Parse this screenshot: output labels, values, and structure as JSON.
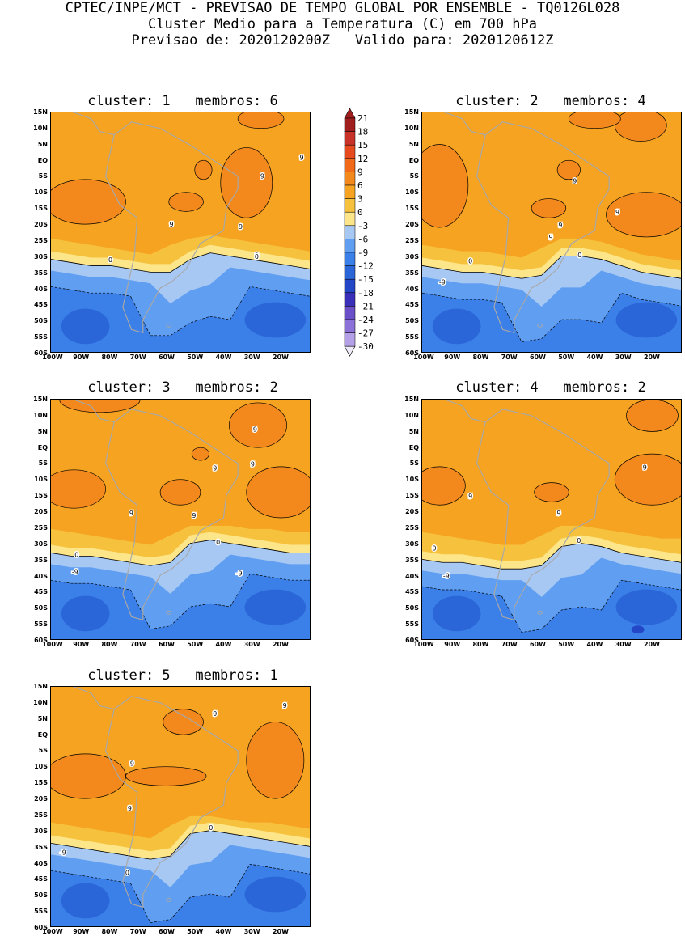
{
  "header": {
    "line1": "CPTEC/INPE/MCT - PREVISAO DE TEMPO GLOBAL POR ENSEMBLE - TQ0126L028",
    "line2": "Cluster Medio para a Temperatura (C) em 700 hPa",
    "line3": "Previsao de: 2020120200Z   Valido para: 2020120612Z"
  },
  "lat_labels": [
    "15N",
    "10N",
    "5N",
    "EQ",
    "5S",
    "10S",
    "15S",
    "20S",
    "25S",
    "30S",
    "35S",
    "40S",
    "45S",
    "50S",
    "55S",
    "60S"
  ],
  "lon_labels": [
    "100W",
    "90W",
    "80W",
    "70W",
    "60W",
    "50W",
    "40W",
    "30W",
    "20W"
  ],
  "colorbar": {
    "levels": [
      "21",
      "18",
      "15",
      "12",
      "9",
      "6",
      "3",
      "0",
      "-3",
      "-6",
      "-9",
      "-12",
      "-15",
      "-18",
      "-21",
      "-24",
      "-27",
      "-30"
    ],
    "colors": [
      "#a01e1e",
      "#c83228",
      "#e64a1e",
      "#f06a1a",
      "#f3891c",
      "#f5a321",
      "#f6c23e",
      "#fde68a",
      "#a8c8f4",
      "#5f9ef0",
      "#3b7fe8",
      "#2a66d8",
      "#2447c8",
      "#3a2fb8",
      "#6a4fc8",
      "#8c72d8",
      "#b3a0e6",
      "#d6cdf2"
    ],
    "top_color": "#a01e1e",
    "bottom_color": "#efeaf8"
  },
  "panels": [
    {
      "title": "cluster: 1   membros: 6",
      "labels": [
        "9",
        "9",
        "9",
        "9",
        "9",
        "0",
        "0"
      ]
    },
    {
      "title": "cluster: 2   membros: 4",
      "labels": [
        "9",
        "9",
        "9",
        "9",
        "0",
        "0",
        "-9"
      ]
    },
    {
      "title": "cluster: 3   membros: 2",
      "labels": [
        "9",
        "9",
        "9",
        "9",
        "9",
        "0",
        "0",
        "-9",
        "-9"
      ]
    },
    {
      "title": "cluster: 4   membros: 2",
      "labels": [
        "9",
        "9",
        "9",
        "0",
        "0",
        "-9"
      ]
    },
    {
      "title": "cluster: 5   membros: 1",
      "labels": [
        "9",
        "9",
        "9",
        "9",
        "0",
        "0",
        "-9"
      ]
    }
  ]
}
